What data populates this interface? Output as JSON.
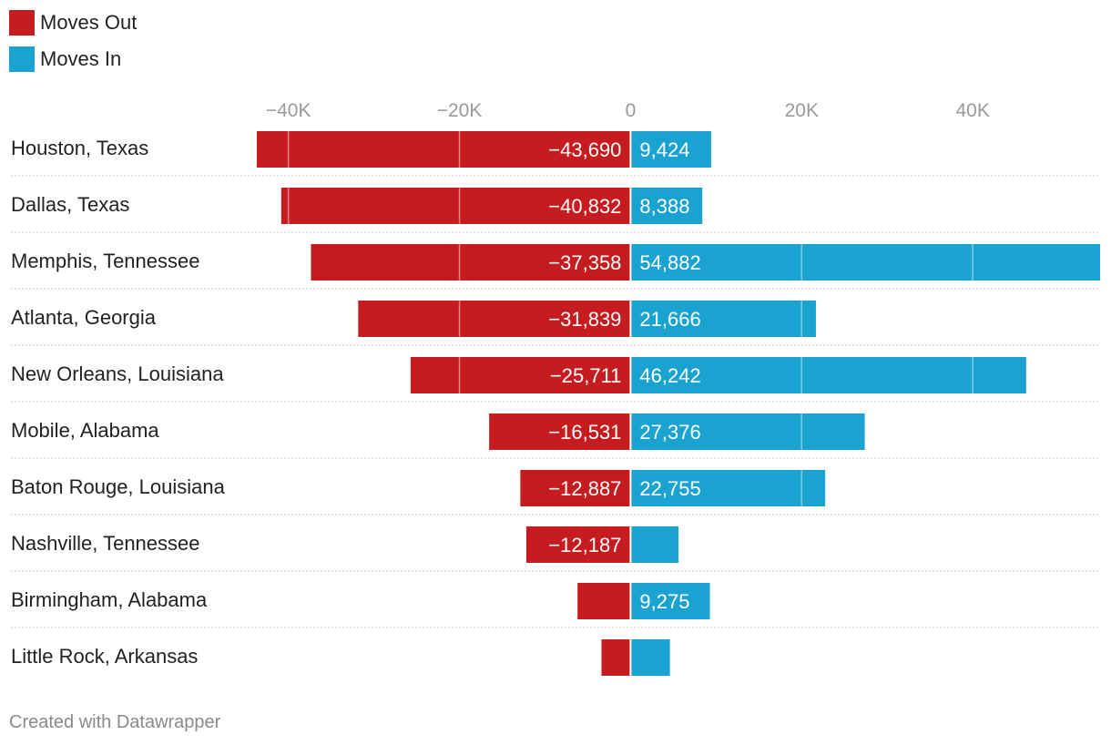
{
  "colors": {
    "out": "#c71c1f",
    "in": "#1aa3d0"
  },
  "legend": [
    {
      "label": "Moves Out",
      "color": "#c71c1f"
    },
    {
      "label": "Moves In",
      "color": "#1aa3d0"
    }
  ],
  "chart_data": {
    "type": "bar",
    "orientation": "horizontal-diverging",
    "xlim": [
      -43690,
      54882
    ],
    "ticks": [
      {
        "value": -40000,
        "label": "−40K"
      },
      {
        "value": -20000,
        "label": "−20K"
      },
      {
        "value": 0,
        "label": "0"
      },
      {
        "value": 20000,
        "label": "20K"
      },
      {
        "value": 40000,
        "label": "40K"
      }
    ],
    "categories": [
      "Houston, Texas",
      "Dallas, Texas",
      "Memphis, Tennessee",
      "Atlanta, Georgia",
      "New Orleans, Louisiana",
      "Mobile, Alabama",
      "Baton Rouge, Louisiana",
      "Nashville, Tennessee",
      "Birmingham, Alabama",
      "Little Rock, Arkansas"
    ],
    "series": [
      {
        "name": "Moves Out",
        "values": [
          -43690,
          -40832,
          -37358,
          -31839,
          -25711,
          -16531,
          -12887,
          -12187,
          -6200,
          -3400
        ],
        "labels": [
          "−43,690",
          "−40,832",
          "−37,358",
          "−31,839",
          "−25,711",
          "−16,531",
          "−12,887",
          "−12,187",
          "",
          ""
        ]
      },
      {
        "name": "Moves In",
        "values": [
          9424,
          8388,
          54882,
          21666,
          46242,
          27376,
          22755,
          5600,
          9275,
          4600
        ],
        "labels": [
          "9,424",
          "8,388",
          "54,882",
          "21,666",
          "46,242",
          "27,376",
          "22,755",
          "",
          "9,275",
          ""
        ]
      }
    ]
  },
  "footer": "Created with Datawrapper"
}
